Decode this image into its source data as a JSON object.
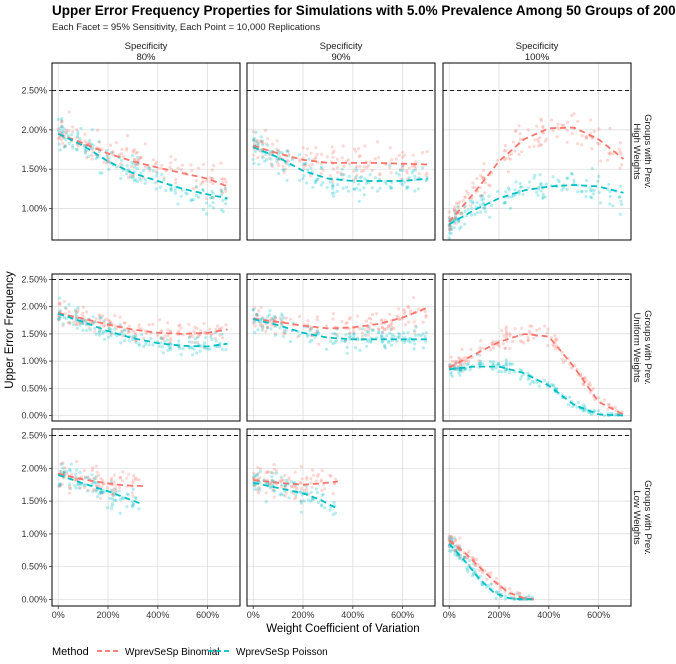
{
  "title": "Upper Error Frequency Properties for Simulations with 5.0% Prevalence Among 50 Groups of 200",
  "subtitle": "Each Facet = 95% Sensitivity, Each Point = 10,000 Replications",
  "colors": {
    "binomial": "#F8766D",
    "poisson": "#00BFC4",
    "grid": "#d9d9d9",
    "panel_border": "#000000"
  },
  "chart_data": {
    "type": "scatter",
    "xlabel": "Weight Coefficient of Variation",
    "ylabel": "Upper Error Frequency",
    "x_ticks": [
      0,
      200,
      400,
      600
    ],
    "x_tick_labels": [
      "0%",
      "200%",
      "400%",
      "600%"
    ],
    "xlim": [
      -25,
      730
    ],
    "reference_line": {
      "y": 2.5,
      "style": "dashed"
    },
    "col_facets": [
      {
        "top": "Specificity",
        "bottom": "80%"
      },
      {
        "top": "Specificity",
        "bottom": "90%"
      },
      {
        "top": "Specificity",
        "bottom": "100%"
      }
    ],
    "row_facets": [
      {
        "line1": "Groups with Prev.",
        "line2": "High Weights",
        "ylim": [
          0.6,
          2.85
        ],
        "y_ticks": [
          1.0,
          1.5,
          2.0,
          2.5
        ],
        "y_tick_labels": [
          "1.00%",
          "1.50%",
          "2.00%",
          "2.50%"
        ]
      },
      {
        "line1": "Groups with Prev.",
        "line2": "Uniform Weights",
        "ylim": [
          -0.1,
          2.6
        ],
        "y_ticks": [
          0.0,
          0.5,
          1.0,
          1.5,
          2.0,
          2.5
        ],
        "y_tick_labels": [
          "0.00%",
          "0.50%",
          "1.00%",
          "1.50%",
          "2.00%",
          "2.50%"
        ]
      },
      {
        "line1": "Groups with Prev.",
        "line2": "Low Weights",
        "ylim": [
          -0.1,
          2.6
        ],
        "y_ticks": [
          0.0,
          0.5,
          1.0,
          1.5,
          2.0,
          2.5
        ],
        "y_tick_labels": [
          "0.00%",
          "0.50%",
          "1.00%",
          "1.50%",
          "2.00%",
          "2.50%"
        ]
      }
    ],
    "series": [
      {
        "name": "WprevSeSp Binomial",
        "color": "#F8766D"
      },
      {
        "name": "WprevSeSp Poisson",
        "color": "#00BFC4"
      }
    ],
    "panels": [
      {
        "row": 0,
        "col": 0,
        "x_max": 680,
        "trend": [
          [
            0,
            1.95,
            1.95
          ],
          [
            100,
            1.83,
            1.8
          ],
          [
            200,
            1.7,
            1.6
          ],
          [
            300,
            1.6,
            1.45
          ],
          [
            400,
            1.52,
            1.35
          ],
          [
            500,
            1.45,
            1.25
          ],
          [
            600,
            1.38,
            1.18
          ],
          [
            680,
            1.28,
            1.13
          ]
        ]
      },
      {
        "row": 0,
        "col": 1,
        "x_max": 700,
        "trend": [
          [
            0,
            1.8,
            1.78
          ],
          [
            100,
            1.7,
            1.65
          ],
          [
            200,
            1.62,
            1.48
          ],
          [
            300,
            1.58,
            1.38
          ],
          [
            400,
            1.58,
            1.35
          ],
          [
            500,
            1.58,
            1.35
          ],
          [
            600,
            1.57,
            1.35
          ],
          [
            700,
            1.56,
            1.38
          ]
        ]
      },
      {
        "row": 0,
        "col": 2,
        "x_max": 700,
        "trend": [
          [
            0,
            0.83,
            0.8
          ],
          [
            100,
            1.2,
            0.98
          ],
          [
            200,
            1.6,
            1.13
          ],
          [
            300,
            1.88,
            1.23
          ],
          [
            400,
            2.02,
            1.28
          ],
          [
            500,
            2.03,
            1.3
          ],
          [
            600,
            1.88,
            1.28
          ],
          [
            700,
            1.63,
            1.2
          ]
        ]
      },
      {
        "row": 1,
        "col": 0,
        "x_max": 680,
        "trend": [
          [
            0,
            1.88,
            1.87
          ],
          [
            100,
            1.78,
            1.72
          ],
          [
            200,
            1.67,
            1.55
          ],
          [
            300,
            1.58,
            1.42
          ],
          [
            400,
            1.52,
            1.33
          ],
          [
            500,
            1.5,
            1.28
          ],
          [
            600,
            1.52,
            1.27
          ],
          [
            680,
            1.58,
            1.32
          ]
        ]
      },
      {
        "row": 1,
        "col": 1,
        "x_max": 700,
        "trend": [
          [
            0,
            1.78,
            1.77
          ],
          [
            100,
            1.72,
            1.66
          ],
          [
            200,
            1.65,
            1.52
          ],
          [
            300,
            1.6,
            1.43
          ],
          [
            400,
            1.62,
            1.4
          ],
          [
            500,
            1.68,
            1.4
          ],
          [
            600,
            1.8,
            1.4
          ],
          [
            700,
            1.98,
            1.4
          ]
        ]
      },
      {
        "row": 1,
        "col": 2,
        "x_max": 700,
        "trend": [
          [
            0,
            0.88,
            0.85
          ],
          [
            100,
            1.12,
            0.9
          ],
          [
            200,
            1.35,
            0.9
          ],
          [
            300,
            1.5,
            0.78
          ],
          [
            400,
            1.45,
            0.55
          ],
          [
            500,
            0.9,
            0.2
          ],
          [
            600,
            0.25,
            0.02
          ],
          [
            700,
            0.02,
            0.0
          ]
        ]
      },
      {
        "row": 2,
        "col": 0,
        "x_max": 340,
        "trend": [
          [
            0,
            1.92,
            1.9
          ],
          [
            100,
            1.83,
            1.77
          ],
          [
            200,
            1.77,
            1.65
          ],
          [
            270,
            1.74,
            1.55
          ],
          [
            340,
            1.73,
            1.45
          ]
        ]
      },
      {
        "row": 2,
        "col": 1,
        "x_max": 340,
        "trend": [
          [
            0,
            1.82,
            1.78
          ],
          [
            100,
            1.78,
            1.7
          ],
          [
            200,
            1.75,
            1.62
          ],
          [
            270,
            1.77,
            1.52
          ],
          [
            340,
            1.8,
            1.38
          ]
        ]
      },
      {
        "row": 2,
        "col": 2,
        "x_max": 340,
        "trend": [
          [
            0,
            0.9,
            0.85
          ],
          [
            60,
            0.72,
            0.6
          ],
          [
            120,
            0.5,
            0.32
          ],
          [
            180,
            0.28,
            0.1
          ],
          [
            240,
            0.1,
            0.02
          ],
          [
            300,
            0.02,
            0.0
          ],
          [
            340,
            0.0,
            0.0
          ]
        ]
      }
    ]
  },
  "legend": {
    "title": "Method",
    "items": [
      "WprevSeSp Binomial",
      "WprevSeSp Poisson"
    ]
  }
}
